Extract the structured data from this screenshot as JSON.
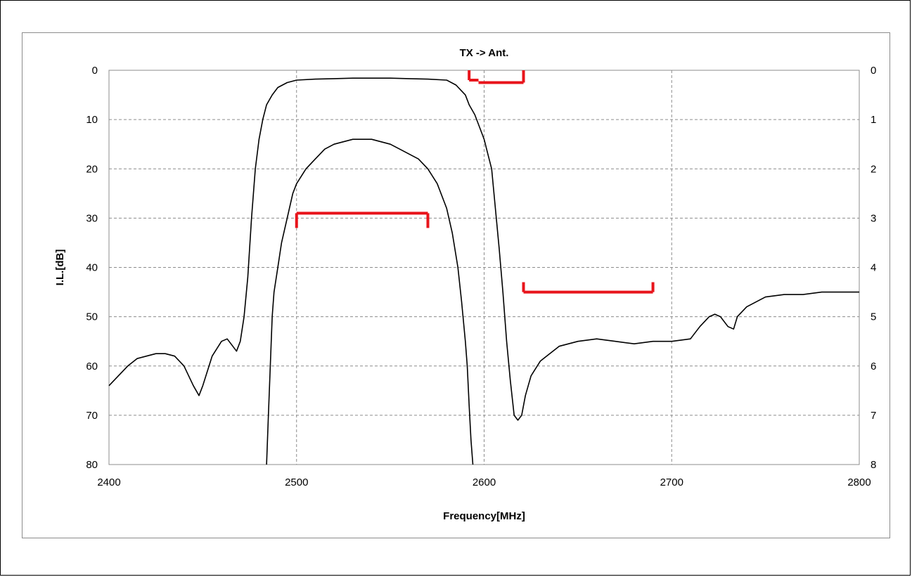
{
  "chart_data": {
    "type": "line",
    "title": "TX -> Ant.",
    "xlabel": "Frequency[MHz]",
    "ylabel": "I.L.[dB]",
    "xlim": [
      2400,
      2800
    ],
    "ylim": [
      0,
      80
    ],
    "y2lim": [
      0,
      8
    ],
    "y_reversed": true,
    "x_ticks": [
      "2400",
      "2500",
      "2600",
      "2700",
      "2800"
    ],
    "y_ticks": [
      "0",
      "10",
      "20",
      "30",
      "40",
      "50",
      "60",
      "70",
      "80"
    ],
    "y2_ticks": [
      "0",
      "1",
      "2",
      "3",
      "4",
      "5",
      "6",
      "7",
      "8"
    ],
    "grid": true,
    "colors": {
      "trace": "#000000",
      "spec": "#e8141b",
      "grid": "#8c8c8c"
    },
    "series": [
      {
        "axis": "left",
        "x": [
          2400,
          2405,
          2410,
          2415,
          2420,
          2425,
          2430,
          2435,
          2440,
          2445,
          2448,
          2450,
          2455,
          2460,
          2463,
          2466,
          2468,
          2470,
          2472,
          2474,
          2476,
          2478,
          2480,
          2482,
          2484,
          2487,
          2490,
          2495,
          2500,
          2510,
          2520,
          2530,
          2540,
          2550,
          2560,
          2570,
          2580,
          2585,
          2590,
          2592,
          2595,
          2598,
          2600,
          2602,
          2604,
          2606,
          2608,
          2610,
          2612,
          2614,
          2616,
          2618,
          2620,
          2622,
          2625,
          2630,
          2640,
          2650,
          2660,
          2670,
          2680,
          2690,
          2700,
          2710,
          2715,
          2720,
          2723,
          2726,
          2730,
          2733,
          2735,
          2740,
          2750,
          2760,
          2770,
          2780,
          2790,
          2800
        ],
        "y": [
          64,
          62,
          60,
          58.5,
          58,
          57.5,
          57.5,
          58,
          60,
          64,
          66,
          64,
          58,
          55,
          54.5,
          56,
          57,
          55,
          50,
          42,
          30,
          20,
          14,
          10,
          7,
          5,
          3.5,
          2.5,
          2,
          1.8,
          1.7,
          1.6,
          1.6,
          1.6,
          1.7,
          1.8,
          2,
          3,
          5,
          7,
          9,
          12,
          14,
          17,
          20,
          28,
          36,
          45,
          55,
          63,
          70,
          71,
          70,
          66,
          62,
          59,
          56,
          55,
          54.5,
          55,
          55.5,
          55,
          55,
          54.5,
          52,
          50,
          49.5,
          50,
          52,
          52.5,
          50,
          48,
          46,
          45.5,
          45.5,
          45,
          45,
          45
        ]
      },
      {
        "axis": "right",
        "x": [
          2484,
          2485,
          2486,
          2487,
          2488,
          2490,
          2492,
          2495,
          2498,
          2500,
          2505,
          2510,
          2515,
          2520,
          2525,
          2530,
          2535,
          2540,
          2545,
          2550,
          2555,
          2560,
          2565,
          2570,
          2575,
          2580,
          2583,
          2586,
          2588,
          2590,
          2591,
          2592,
          2593,
          2594
        ],
        "y": [
          8,
          7,
          6,
          5,
          4.5,
          4,
          3.5,
          3,
          2.5,
          2.3,
          2,
          1.8,
          1.6,
          1.5,
          1.45,
          1.4,
          1.4,
          1.4,
          1.45,
          1.5,
          1.6,
          1.7,
          1.8,
          2,
          2.3,
          2.8,
          3.3,
          4,
          4.7,
          5.5,
          6,
          6.8,
          7.5,
          8
        ]
      }
    ],
    "spec_markers": [
      {
        "axis": "left",
        "x": [
          2592,
          2597
        ],
        "y": 2,
        "tick_to": 0,
        "tick_side": "left"
      },
      {
        "axis": "left",
        "x": [
          2597,
          2621
        ],
        "y": 2.5,
        "tick_to": 0,
        "tick_side": "right"
      },
      {
        "axis": "right",
        "x": [
          2500,
          2570
        ],
        "y": 2.9,
        "tick_to": 3.2,
        "tick_side": "both"
      },
      {
        "axis": "left",
        "x": [
          2621,
          2690
        ],
        "y": 45,
        "tick_to": 43,
        "tick_side": "both"
      }
    ]
  }
}
